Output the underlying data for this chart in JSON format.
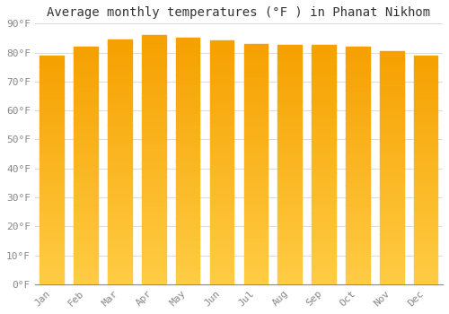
{
  "months": [
    "Jan",
    "Feb",
    "Mar",
    "Apr",
    "May",
    "Jun",
    "Jul",
    "Aug",
    "Sep",
    "Oct",
    "Nov",
    "Dec"
  ],
  "values": [
    79,
    82,
    84.5,
    86,
    85,
    84,
    83,
    82.5,
    82.5,
    82,
    80.5,
    79
  ],
  "title": "Average monthly temperatures (°F ) in Phanat Nikhom",
  "ylim": [
    0,
    90
  ],
  "yticks": [
    0,
    10,
    20,
    30,
    40,
    50,
    60,
    70,
    80,
    90
  ],
  "ytick_labels": [
    "0°F",
    "10°F",
    "20°F",
    "30°F",
    "40°F",
    "50°F",
    "60°F",
    "70°F",
    "80°F",
    "90°F"
  ],
  "background_color": "#FFFFFF",
  "grid_color": "#DDDDDD",
  "title_fontsize": 10,
  "tick_fontsize": 8,
  "bar_width": 0.7,
  "bar_color_bottom": "#FFCC44",
  "bar_color_top": "#F5A000",
  "n_grad": 60
}
